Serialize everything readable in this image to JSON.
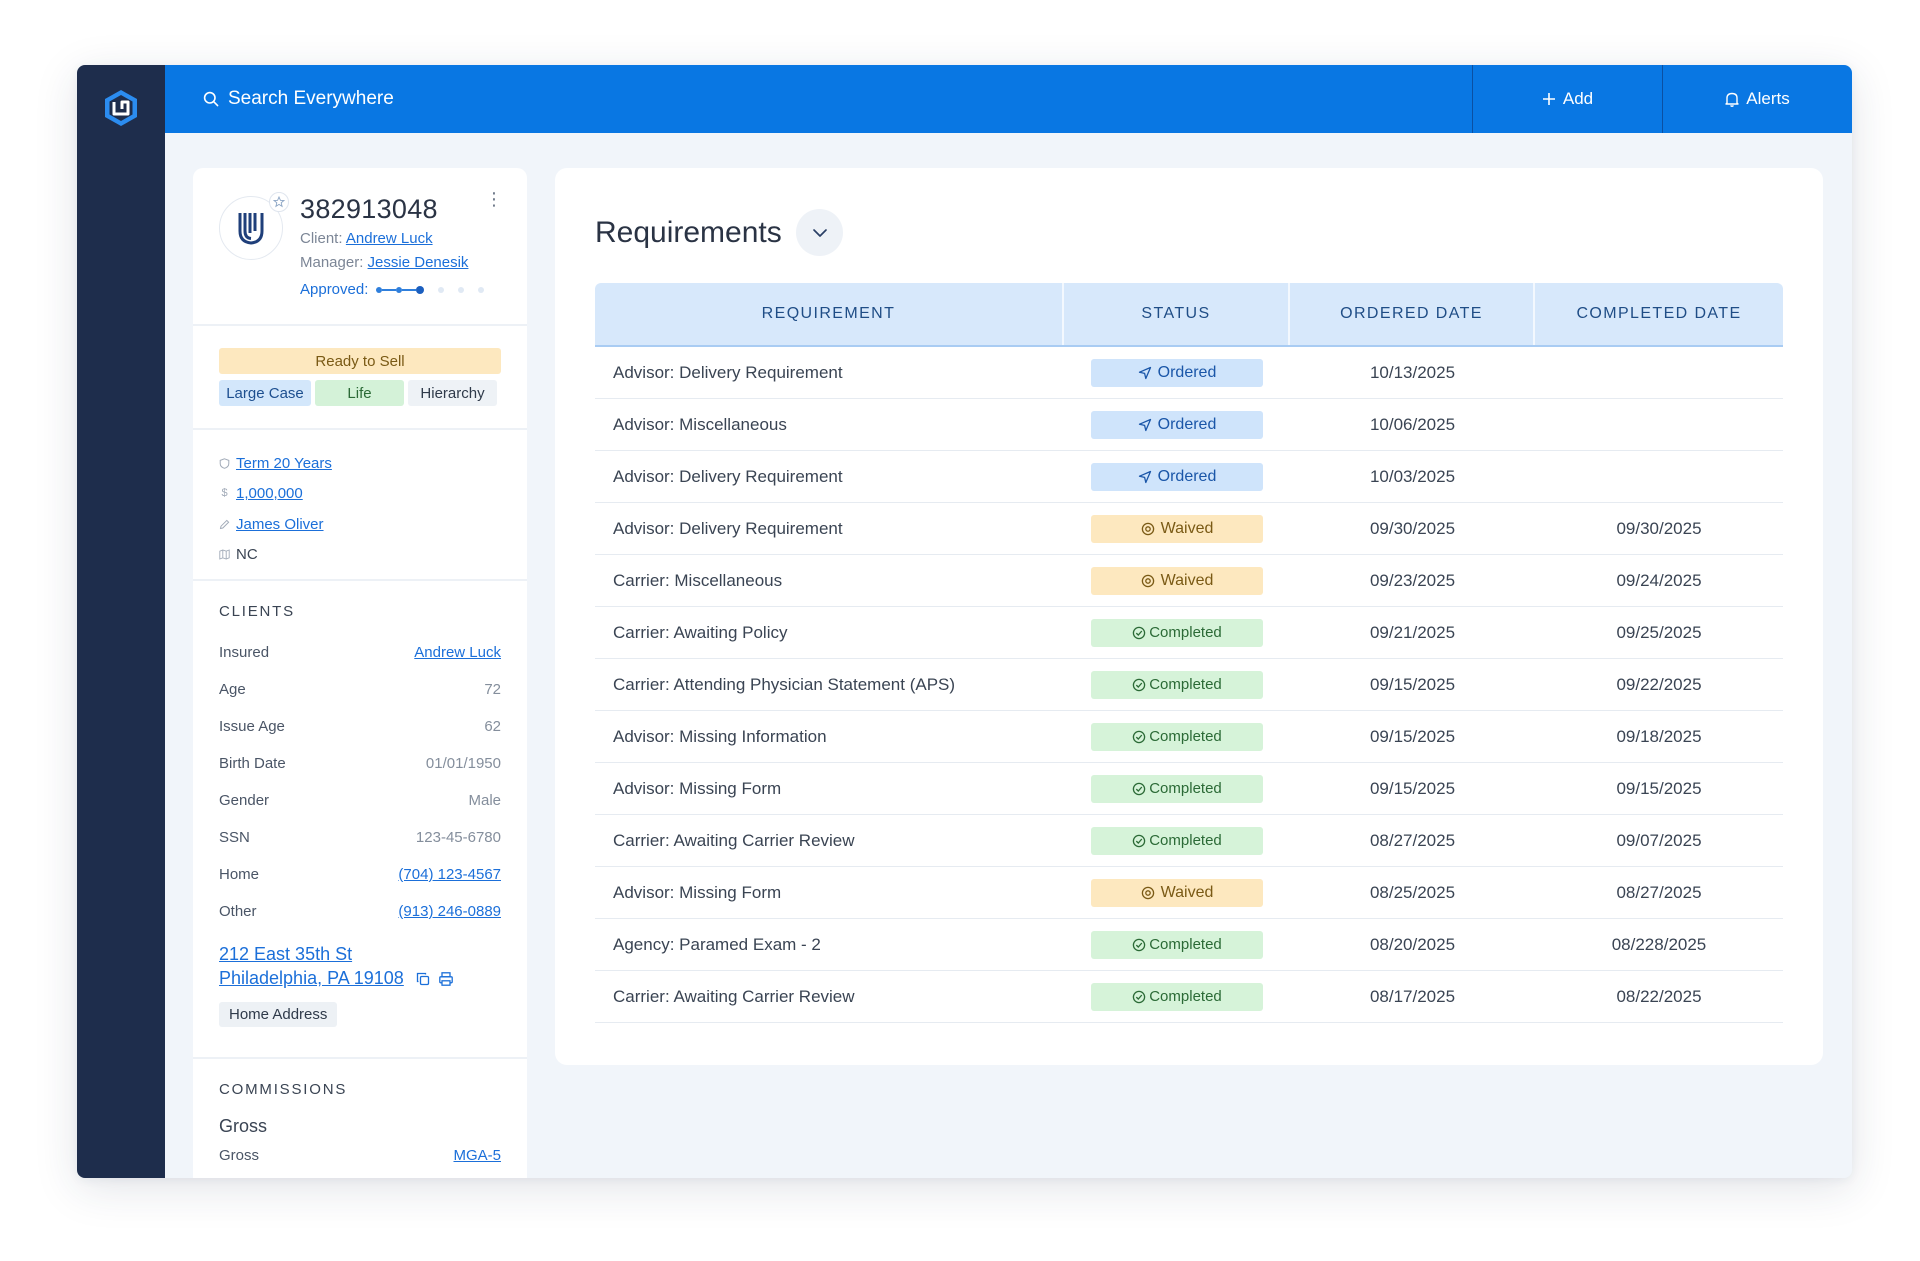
{
  "topbar": {
    "search_label": "Search Everywhere",
    "add_label": "Add",
    "alerts_label": "Alerts"
  },
  "policy": {
    "number": "382913048",
    "client_label": "Client:",
    "client_name": "Andrew Luck",
    "manager_label": "Manager:",
    "manager_name": "Jessie Denesik",
    "approved_label": "Approved:",
    "approval_progress_steps": 3,
    "approval_total_steps": 6
  },
  "tags": {
    "status": "Ready to Sell",
    "items": [
      "Large Case",
      "Life",
      "Hierarchy"
    ]
  },
  "info": {
    "product": "Term 20 Years",
    "face_amount": "1,000,000",
    "agent": "James Oliver",
    "state": "NC"
  },
  "clients": {
    "title": "CLIENTS",
    "insured_label": "Insured",
    "insured_value": "Andrew Luck",
    "age_label": "Age",
    "age_value": "72",
    "issue_age_label": "Issue Age",
    "issue_age_value": "62",
    "birth_label": "Birth Date",
    "birth_value": "01/01/1950",
    "gender_label": "Gender",
    "gender_value": "Male",
    "ssn_label": "SSN",
    "ssn_value": "123-45-6780",
    "home_label": "Home",
    "home_value": "(704) 123-4567",
    "other_label": "Other",
    "other_value": "(913) 246-0889",
    "address_line1": "212 East 35th St",
    "address_line2": "Philadelphia, PA 19108",
    "address_tag": "Home Address"
  },
  "commissions": {
    "title": "COMMISSIONS",
    "gross_heading": "Gross",
    "gross_label": "Gross",
    "gross_value": "MGA-5"
  },
  "requirements": {
    "title": "Requirements",
    "columns": [
      "REQUIREMENT",
      "STATUS",
      "ORDERED DATE",
      "COMPLETED DATE"
    ],
    "rows": [
      {
        "requirement": "Advisor: Delivery Requirement",
        "status": "Ordered",
        "ordered": "10/13/2025",
        "completed": ""
      },
      {
        "requirement": "Advisor: Miscellaneous",
        "status": "Ordered",
        "ordered": "10/06/2025",
        "completed": ""
      },
      {
        "requirement": "Advisor: Delivery Requirement",
        "status": "Ordered",
        "ordered": "10/03/2025",
        "completed": ""
      },
      {
        "requirement": "Advisor: Delivery Requirement",
        "status": "Waived",
        "ordered": "09/30/2025",
        "completed": "09/30/2025"
      },
      {
        "requirement": "Carrier: Miscellaneous",
        "status": "Waived",
        "ordered": "09/23/2025",
        "completed": "09/24/2025"
      },
      {
        "requirement": "Carrier: Awaiting Policy",
        "status": "Completed",
        "ordered": "09/21/2025",
        "completed": "09/25/2025"
      },
      {
        "requirement": "Carrier: Attending Physician Statement (APS)",
        "status": "Completed",
        "ordered": "09/15/2025",
        "completed": "09/22/2025"
      },
      {
        "requirement": "Advisor: Missing Information",
        "status": "Completed",
        "ordered": "09/15/2025",
        "completed": "09/18/2025"
      },
      {
        "requirement": "Advisor: Missing Form",
        "status": "Completed",
        "ordered": "09/15/2025",
        "completed": "09/15/2025"
      },
      {
        "requirement": "Carrier: Awaiting Carrier Review",
        "status": "Completed",
        "ordered": "08/27/2025",
        "completed": "09/07/2025"
      },
      {
        "requirement": "Advisor: Missing Form",
        "status": "Waived",
        "ordered": "08/25/2025",
        "completed": "08/27/2025"
      },
      {
        "requirement": "Agency: Paramed Exam - 2",
        "status": "Completed",
        "ordered": "08/20/2025",
        "completed": "08/228/2025"
      },
      {
        "requirement": "Carrier: Awaiting Carrier Review",
        "status": "Completed",
        "ordered": "08/17/2025",
        "completed": "08/22/2025"
      }
    ]
  },
  "colors": {
    "rail": "#1e2d4c",
    "topbar": "#0977e3",
    "link": "#1b6fd9",
    "ordered_bg": "#cfe4fb",
    "waived_bg": "#fde8bf",
    "completed_bg": "#d6f3d9"
  },
  "icons": {
    "logo": "app-logo-icon",
    "search": "search-icon",
    "add": "plus-icon",
    "alerts": "bell-icon",
    "product": "shield-icon",
    "amount": "dollar-icon",
    "agent": "pencil-icon",
    "state": "map-icon",
    "copy": "copy-icon",
    "print": "printer-icon",
    "ordered": "send-icon",
    "waived": "waived-icon",
    "completed": "check-circle-icon",
    "toggle": "chevron-down-icon",
    "menu": "more-vertical-icon",
    "favorite": "star-icon"
  }
}
